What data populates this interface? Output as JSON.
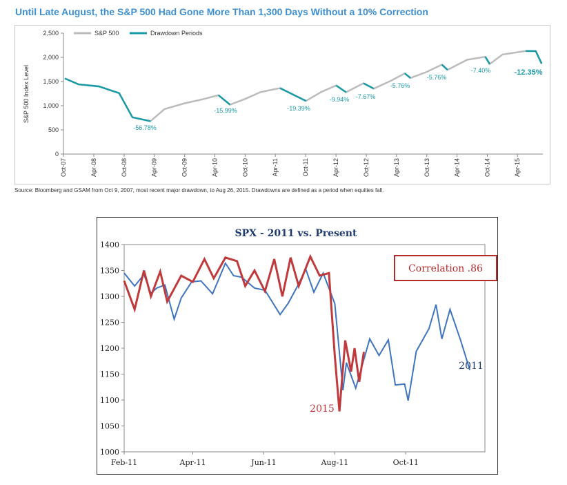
{
  "top_title": "Until Late August, the S&P 500 Had Gone More Than 1,300 Days Without a 10% Correction",
  "top_source": "Source: Bloomberg and GSAM from Oct 9, 2007, most recent major drawdown, to Aug 26, 2015. Drawdowns are defined as a period when equities fall.",
  "colors": {
    "sp500": "#bbbbbb",
    "drawdown": "#1a9aa6",
    "line2011": "#3f74c0",
    "line2015": "#c0393b",
    "correlation_border": "#b22a2a",
    "title_top": "#3d8fcf"
  },
  "chart_data": [
    {
      "type": "line",
      "title": "Until Late August, the S&P 500 Had Gone More Than 1,300 Days Without a 10% Correction",
      "ylabel": "S&P 500 Index Level",
      "ylim": [
        0,
        2500
      ],
      "yticks": [
        "0",
        "500",
        "1,000",
        "1,500",
        "2,000",
        "2,500"
      ],
      "xlim": [
        "2007-10",
        "2015-09"
      ],
      "xticks": [
        "Oct-07",
        "Apr-08",
        "Oct-08",
        "Apr-09",
        "Oct-09",
        "Apr-10",
        "Oct-10",
        "Apr-11",
        "Oct-11",
        "Apr-12",
        "Oct-12",
        "Apr-13",
        "Oct-13",
        "Apr-14",
        "Oct-14",
        "Apr-15"
      ],
      "legend": [
        "S&P 500",
        "Drawdown Periods"
      ],
      "legend_position": "top-left",
      "series": [
        {
          "name": "S&P 500",
          "points": [
            [
              "2007-10-09",
              1565
            ],
            [
              "2008-01-01",
              1440
            ],
            [
              "2008-05-01",
              1400
            ],
            [
              "2008-09-01",
              1260
            ],
            [
              "2008-11-20",
              760
            ],
            [
              "2009-03-09",
              680
            ],
            [
              "2009-06-01",
              930
            ],
            [
              "2009-10-01",
              1050
            ],
            [
              "2010-01-15",
              1130
            ],
            [
              "2010-04-23",
              1217
            ],
            [
              "2010-07-02",
              1022
            ],
            [
              "2010-10-01",
              1140
            ],
            [
              "2011-01-01",
              1280
            ],
            [
              "2011-04-29",
              1364
            ],
            [
              "2011-10-03",
              1099
            ],
            [
              "2012-01-01",
              1280
            ],
            [
              "2012-04-02",
              1419
            ],
            [
              "2012-06-01",
              1278
            ],
            [
              "2012-09-14",
              1465
            ],
            [
              "2012-11-15",
              1353
            ],
            [
              "2013-03-01",
              1520
            ],
            [
              "2013-05-21",
              1669
            ],
            [
              "2013-06-24",
              1573
            ],
            [
              "2013-10-01",
              1700
            ],
            [
              "2013-12-31",
              1848
            ],
            [
              "2014-02-03",
              1741
            ],
            [
              "2014-06-01",
              1950
            ],
            [
              "2014-09-19",
              2011
            ],
            [
              "2014-10-15",
              1862
            ],
            [
              "2015-01-01",
              2058
            ],
            [
              "2015-05-21",
              2131
            ],
            [
              "2015-07-20",
              2128
            ],
            [
              "2015-08-25",
              1868
            ]
          ]
        }
      ],
      "drawdowns": [
        {
          "start": "2007-10-09",
          "end": "2009-03-09",
          "label": "-56.78%"
        },
        {
          "start": "2010-04-23",
          "end": "2010-07-02",
          "label": "-15.99%"
        },
        {
          "start": "2011-04-29",
          "end": "2011-10-03",
          "label": "-19.39%"
        },
        {
          "start": "2012-04-02",
          "end": "2012-06-01",
          "label": "-9.94%"
        },
        {
          "start": "2012-09-14",
          "end": "2012-11-15",
          "label": "-7.67%"
        },
        {
          "start": "2013-05-21",
          "end": "2013-06-24",
          "label": "-5.76%"
        },
        {
          "start": "2014-01-15",
          "end": "2014-02-03",
          "label": "-5.76%"
        },
        {
          "start": "2014-09-19",
          "end": "2014-10-15",
          "label": "-7.40%"
        },
        {
          "start": "2015-05-21",
          "end": "2015-08-25",
          "label": "-12.35%"
        }
      ]
    },
    {
      "type": "line",
      "title": "SPX - 2011 vs. Present",
      "ylim": [
        1000,
        1400
      ],
      "yticks": [
        "1000",
        "1050",
        "1100",
        "1150",
        "1200",
        "1250",
        "1300",
        "1350",
        "1400"
      ],
      "xlim": [
        "Feb-11",
        "Nov-11"
      ],
      "xticks": [
        "Feb-11",
        "Apr-11",
        "Jun-11",
        "Aug-11",
        "Oct-11"
      ],
      "annotation": "Correlation .86",
      "series": [
        {
          "name": "2011",
          "points": [
            [
              "2011-02-01",
              1345
            ],
            [
              "2011-02-10",
              1320
            ],
            [
              "2011-02-18",
              1342
            ],
            [
              "2011-02-24",
              1306
            ],
            [
              "2011-03-01",
              1316
            ],
            [
              "2011-03-08",
              1322
            ],
            [
              "2011-03-16",
              1256
            ],
            [
              "2011-03-22",
              1297
            ],
            [
              "2011-03-31",
              1328
            ],
            [
              "2011-04-08",
              1330
            ],
            [
              "2011-04-18",
              1305
            ],
            [
              "2011-04-29",
              1364
            ],
            [
              "2011-05-06",
              1340
            ],
            [
              "2011-05-13",
              1337
            ],
            [
              "2011-05-24",
              1316
            ],
            [
              "2011-06-02",
              1312
            ],
            [
              "2011-06-15",
              1265
            ],
            [
              "2011-06-22",
              1287
            ],
            [
              "2011-06-30",
              1320
            ],
            [
              "2011-07-07",
              1353
            ],
            [
              "2011-07-14",
              1308
            ],
            [
              "2011-07-22",
              1345
            ],
            [
              "2011-08-01",
              1286
            ],
            [
              "2011-08-08",
              1119
            ],
            [
              "2011-08-11",
              1172
            ],
            [
              "2011-08-19",
              1123
            ],
            [
              "2011-08-31",
              1218
            ],
            [
              "2011-09-08",
              1186
            ],
            [
              "2011-09-16",
              1216
            ],
            [
              "2011-09-22",
              1129
            ],
            [
              "2011-09-30",
              1131
            ],
            [
              "2011-10-03",
              1099
            ],
            [
              "2011-10-10",
              1194
            ],
            [
              "2011-10-21",
              1238
            ],
            [
              "2011-10-27",
              1284
            ],
            [
              "2011-11-01",
              1218
            ],
            [
              "2011-11-08",
              1275
            ],
            [
              "2011-11-17",
              1216
            ],
            [
              "2011-11-25",
              1158
            ]
          ],
          "label": "2011"
        },
        {
          "name": "2015",
          "points": [
            [
              "2011-02-01",
              1330
            ],
            [
              "2011-02-10",
              1275
            ],
            [
              "2011-02-18",
              1350
            ],
            [
              "2011-02-24",
              1300
            ],
            [
              "2011-03-04",
              1348
            ],
            [
              "2011-03-10",
              1290
            ],
            [
              "2011-03-22",
              1340
            ],
            [
              "2011-04-01",
              1328
            ],
            [
              "2011-04-11",
              1372
            ],
            [
              "2011-04-19",
              1335
            ],
            [
              "2011-04-29",
              1375
            ],
            [
              "2011-05-09",
              1368
            ],
            [
              "2011-05-16",
              1320
            ],
            [
              "2011-05-24",
              1350
            ],
            [
              "2011-06-02",
              1310
            ],
            [
              "2011-06-10",
              1372
            ],
            [
              "2011-06-17",
              1300
            ],
            [
              "2011-06-24",
              1375
            ],
            [
              "2011-07-01",
              1320
            ],
            [
              "2011-07-11",
              1377
            ],
            [
              "2011-07-19",
              1340
            ],
            [
              "2011-07-27",
              1345
            ],
            [
              "2011-08-01",
              1185
            ],
            [
              "2011-08-05",
              1078
            ],
            [
              "2011-08-10",
              1215
            ],
            [
              "2011-08-15",
              1155
            ],
            [
              "2011-08-18",
              1200
            ],
            [
              "2011-08-22",
              1135
            ],
            [
              "2011-08-26",
              1193
            ]
          ],
          "label": "2015"
        }
      ]
    }
  ]
}
